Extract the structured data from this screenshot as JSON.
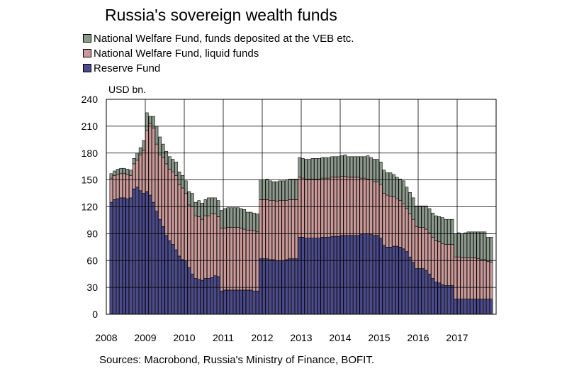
{
  "chart_data": {
    "type": "bar",
    "stacked": true,
    "title": "Russia's sovereign wealth funds",
    "ylabel": "USD bn.",
    "source": "Sources: Macrobond, Russia's Ministry of Finance, BOFIT.",
    "ylim": [
      0,
      240
    ],
    "yticks": [
      0,
      30,
      60,
      90,
      120,
      150,
      180,
      210,
      240
    ],
    "xticks": [
      "2008",
      "2009",
      "2010",
      "2011",
      "2012",
      "2013",
      "2014",
      "2015",
      "2016",
      "2017"
    ],
    "x_start": "2008-02",
    "frequency": "monthly",
    "grid": true,
    "legend_position": "top-left",
    "series": [
      {
        "name": "Reserve Fund",
        "color": "#4a4a8c",
        "values": [
          125,
          128,
          129,
          130,
          130,
          129,
          130,
          140,
          142,
          138,
          135,
          137,
          133,
          125,
          115,
          106,
          98,
          88,
          82,
          78,
          72,
          65,
          61,
          60,
          52,
          45,
          40,
          39,
          38,
          40,
          40,
          41,
          43,
          42,
          26,
          27,
          27,
          27,
          27,
          27,
          27,
          27,
          27,
          27,
          26,
          26,
          62,
          62,
          62,
          61,
          61,
          60,
          60,
          60,
          61,
          62,
          62,
          62,
          86,
          86,
          85,
          85,
          85,
          85,
          85,
          86,
          86,
          86,
          87,
          87,
          87,
          88,
          88,
          88,
          88,
          88,
          88,
          89,
          90,
          90,
          89,
          88,
          88,
          85,
          77,
          75,
          75,
          76,
          76,
          75,
          73,
          70,
          64,
          58,
          51,
          51,
          51,
          49,
          45,
          40,
          36,
          35,
          33,
          32,
          32,
          32,
          17,
          17,
          17,
          17,
          17,
          17,
          17,
          17,
          17,
          17,
          17,
          17
        ]
      },
      {
        "name": "National Welfare Fund, liquid funds",
        "color": "#cc9999",
        "values": [
          27,
          27,
          27,
          27,
          27,
          27,
          25,
          28,
          30,
          40,
          48,
          68,
          80,
          83,
          75,
          72,
          77,
          80,
          80,
          81,
          83,
          80,
          80,
          75,
          70,
          75,
          70,
          70,
          68,
          70,
          70,
          71,
          69,
          67,
          70,
          69,
          70,
          70,
          70,
          70,
          69,
          68,
          67,
          67,
          67,
          66,
          66,
          66,
          66,
          66,
          66,
          66,
          67,
          67,
          66,
          66,
          66,
          66,
          67,
          66,
          66,
          66,
          66,
          66,
          66,
          66,
          66,
          66,
          66,
          66,
          66,
          66,
          66,
          65,
          65,
          65,
          65,
          63,
          62,
          61,
          61,
          60,
          60,
          60,
          58,
          58,
          57,
          55,
          53,
          52,
          50,
          48,
          48,
          48,
          47,
          46,
          46,
          46,
          46,
          46,
          46,
          46,
          46,
          46,
          46,
          46,
          47,
          47,
          46,
          46,
          46,
          46,
          46,
          45,
          44,
          44,
          42,
          41
        ]
      },
      {
        "name": "National Welfare Fund, funds deposited at the VEB etc.",
        "color": "#8c9a8c",
        "values": [
          5,
          5,
          6,
          6,
          6,
          6,
          6,
          6,
          8,
          8,
          11,
          20,
          8,
          13,
          20,
          20,
          15,
          14,
          14,
          14,
          15,
          14,
          14,
          14,
          15,
          15,
          15,
          18,
          18,
          18,
          20,
          18,
          18,
          18,
          20,
          22,
          22,
          22,
          22,
          22,
          22,
          22,
          20,
          20,
          20,
          20,
          22,
          22,
          23,
          22,
          21,
          22,
          22,
          22,
          23,
          23,
          23,
          23,
          22,
          22,
          22,
          22,
          23,
          23,
          23,
          23,
          23,
          23,
          23,
          23,
          23,
          23,
          24,
          23,
          23,
          23,
          23,
          24,
          24,
          26,
          25,
          25,
          25,
          25,
          26,
          25,
          26,
          25,
          24,
          24,
          26,
          24,
          24,
          24,
          23,
          24,
          24,
          26,
          27,
          27,
          28,
          28,
          29,
          28,
          28,
          28,
          26,
          27,
          27,
          28,
          29,
          29,
          29,
          30,
          31,
          31,
          27,
          28
        ]
      }
    ]
  }
}
